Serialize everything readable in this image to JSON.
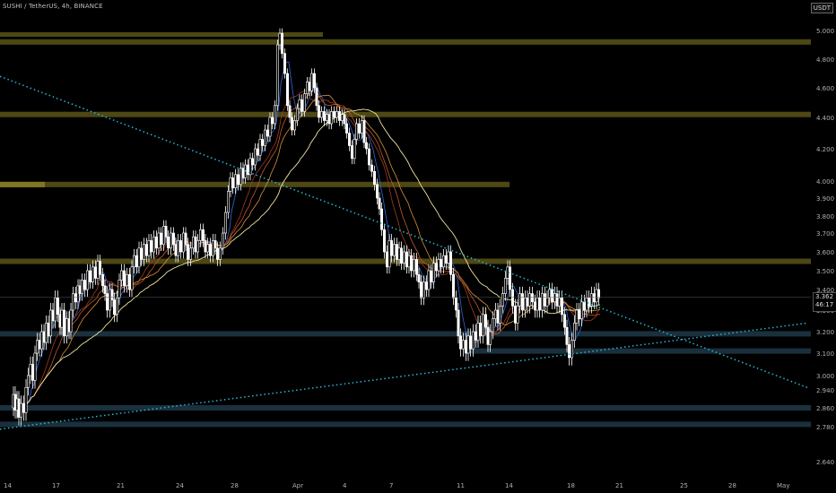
{
  "header": {
    "symbol_title": "SUSHI / TetherUS, 4h, BINANCE",
    "currency_badge": "USDT"
  },
  "price_tag": {
    "price": "3.362",
    "countdown": "46:17"
  },
  "colors": {
    "background": "#000000",
    "candle_up": "#ffffff",
    "candle_down": "#ffffff",
    "trendline": "#29b6d6",
    "resistance_zone": "#5a5518",
    "support_zone": "#1f3848",
    "ma_fast": "#2b5fc9",
    "ma_slow": "#f0e3a0"
  },
  "chart_data": {
    "type": "candlestick",
    "title": "SUSHI / TetherUS, 4h, BINANCE",
    "xlabel": "",
    "ylabel": "",
    "ylim": [
      2.58,
      5.12
    ],
    "y_ticks": [
      "5.000",
      "4.800",
      "4.600",
      "4.400",
      "4.200",
      "4.000",
      "3.900",
      "3.800",
      "3.700",
      "3.600",
      "3.500",
      "3.400",
      "3.300",
      "3.200",
      "3.100",
      "3.000",
      "2.940",
      "2.860",
      "2.780",
      "2.640"
    ],
    "x_ticks": [
      "14",
      "17",
      "21",
      "24",
      "28",
      "Apr",
      "4",
      "7",
      "11",
      "14",
      "18",
      "21",
      "25",
      "28",
      "May"
    ],
    "last_price": 3.362,
    "horizontal_zones": [
      {
        "kind": "resistance",
        "price": 4.92
      },
      {
        "kind": "resistance",
        "price": 4.42
      },
      {
        "kind": "resistance",
        "price": 3.98
      },
      {
        "kind": "resistance",
        "price": 3.55
      },
      {
        "kind": "support",
        "price": 3.19
      },
      {
        "kind": "support",
        "price": 3.11
      },
      {
        "kind": "support",
        "price": 2.86
      },
      {
        "kind": "support",
        "price": 2.79
      }
    ],
    "trendlines": [
      {
        "name": "descending",
        "from": [
          0,
          4.68
        ],
        "to": [
          900,
          2.95
        ]
      },
      {
        "name": "ascending",
        "from": [
          0,
          2.77
        ],
        "to": [
          900,
          3.24
        ]
      }
    ],
    "price_path": [
      [
        14,
        2.86
      ],
      [
        16,
        2.92
      ],
      [
        18,
        2.85
      ],
      [
        20,
        2.9
      ],
      [
        22,
        2.82
      ],
      [
        25,
        2.88
      ],
      [
        28,
        2.84
      ],
      [
        30,
        2.95
      ],
      [
        33,
        3.0
      ],
      [
        35,
        3.05
      ],
      [
        38,
        2.98
      ],
      [
        40,
        3.1
      ],
      [
        43,
        3.16
      ],
      [
        45,
        3.12
      ],
      [
        48,
        3.2
      ],
      [
        50,
        3.15
      ],
      [
        53,
        3.24
      ],
      [
        55,
        3.18
      ],
      [
        58,
        3.3
      ],
      [
        60,
        3.25
      ],
      [
        63,
        3.36
      ],
      [
        66,
        3.28
      ],
      [
        68,
        3.22
      ],
      [
        70,
        3.3
      ],
      [
        73,
        3.18
      ],
      [
        76,
        3.26
      ],
      [
        78,
        3.2
      ],
      [
        80,
        3.3
      ],
      [
        83,
        3.38
      ],
      [
        86,
        3.34
      ],
      [
        88,
        3.42
      ],
      [
        90,
        3.38
      ],
      [
        93,
        3.45
      ],
      [
        96,
        3.4
      ],
      [
        99,
        3.5
      ],
      [
        102,
        3.44
      ],
      [
        105,
        3.52
      ],
      [
        108,
        3.46
      ],
      [
        110,
        3.55
      ],
      [
        113,
        3.48
      ],
      [
        116,
        3.42
      ],
      [
        118,
        3.38
      ],
      [
        121,
        3.3
      ],
      [
        124,
        3.4
      ],
      [
        126,
        3.35
      ],
      [
        129,
        3.28
      ],
      [
        132,
        3.36
      ],
      [
        134,
        3.45
      ],
      [
        137,
        3.5
      ],
      [
        140,
        3.42
      ],
      [
        143,
        3.48
      ],
      [
        146,
        3.4
      ],
      [
        148,
        3.52
      ],
      [
        151,
        3.58
      ],
      [
        154,
        3.52
      ],
      [
        156,
        3.62
      ],
      [
        159,
        3.56
      ],
      [
        162,
        3.64
      ],
      [
        165,
        3.58
      ],
      [
        167,
        3.66
      ],
      [
        170,
        3.6
      ],
      [
        173,
        3.68
      ],
      [
        176,
        3.62
      ],
      [
        178,
        3.7
      ],
      [
        181,
        3.64
      ],
      [
        184,
        3.74
      ],
      [
        186,
        3.68
      ],
      [
        189,
        3.62
      ],
      [
        192,
        3.7
      ],
      [
        195,
        3.64
      ],
      [
        197,
        3.58
      ],
      [
        200,
        3.66
      ],
      [
        203,
        3.6
      ],
      [
        206,
        3.7
      ],
      [
        208,
        3.64
      ],
      [
        211,
        3.56
      ],
      [
        214,
        3.62
      ],
      [
        217,
        3.68
      ],
      [
        219,
        3.6
      ],
      [
        222,
        3.66
      ],
      [
        225,
        3.72
      ],
      [
        228,
        3.66
      ],
      [
        230,
        3.6
      ],
      [
        233,
        3.64
      ],
      [
        236,
        3.58
      ],
      [
        239,
        3.66
      ],
      [
        241,
        3.62
      ],
      [
        244,
        3.56
      ],
      [
        247,
        3.62
      ],
      [
        250,
        3.7
      ],
      [
        253,
        3.82
      ],
      [
        256,
        3.94
      ],
      [
        258,
        4.02
      ],
      [
        261,
        3.96
      ],
      [
        264,
        4.04
      ],
      [
        267,
        3.98
      ],
      [
        270,
        4.08
      ],
      [
        272,
        4.02
      ],
      [
        275,
        4.1
      ],
      [
        278,
        4.04
      ],
      [
        280,
        4.14
      ],
      [
        283,
        4.1
      ],
      [
        286,
        4.2
      ],
      [
        289,
        4.16
      ],
      [
        291,
        4.26
      ],
      [
        294,
        4.22
      ],
      [
        297,
        4.32
      ],
      [
        300,
        4.28
      ],
      [
        302,
        4.4
      ],
      [
        305,
        4.36
      ],
      [
        308,
        4.48
      ],
      [
        311,
        4.9
      ],
      [
        313,
        4.98
      ],
      [
        316,
        4.84
      ],
      [
        319,
        4.7
      ],
      [
        322,
        4.48
      ],
      [
        324,
        4.4
      ],
      [
        327,
        4.32
      ],
      [
        330,
        4.38
      ],
      [
        333,
        4.46
      ],
      [
        335,
        4.52
      ],
      [
        338,
        4.44
      ],
      [
        341,
        4.56
      ],
      [
        344,
        4.64
      ],
      [
        346,
        4.58
      ],
      [
        349,
        4.7
      ],
      [
        352,
        4.6
      ],
      [
        354,
        4.48
      ],
      [
        357,
        4.4
      ],
      [
        360,
        4.44
      ],
      [
        363,
        4.38
      ],
      [
        366,
        4.42
      ],
      [
        368,
        4.36
      ],
      [
        371,
        4.44
      ],
      [
        374,
        4.4
      ],
      [
        377,
        4.44
      ],
      [
        380,
        4.38
      ],
      [
        383,
        4.42
      ],
      [
        385,
        4.36
      ],
      [
        388,
        4.3
      ],
      [
        391,
        4.22
      ],
      [
        394,
        4.14
      ],
      [
        396,
        4.26
      ],
      [
        399,
        4.36
      ],
      [
        402,
        4.3
      ],
      [
        405,
        4.38
      ],
      [
        407,
        4.24
      ],
      [
        410,
        4.2
      ],
      [
        413,
        4.1
      ],
      [
        416,
        4.06
      ],
      [
        419,
        3.98
      ],
      [
        422,
        3.9
      ],
      [
        424,
        3.84
      ],
      [
        427,
        3.72
      ],
      [
        430,
        3.6
      ],
      [
        433,
        3.52
      ],
      [
        435,
        3.66
      ],
      [
        438,
        3.58
      ],
      [
        441,
        3.64
      ],
      [
        444,
        3.56
      ],
      [
        446,
        3.62
      ],
      [
        449,
        3.54
      ],
      [
        452,
        3.6
      ],
      [
        455,
        3.52
      ],
      [
        457,
        3.58
      ],
      [
        460,
        3.5
      ],
      [
        463,
        3.56
      ],
      [
        466,
        3.48
      ],
      [
        468,
        3.44
      ],
      [
        471,
        3.36
      ],
      [
        474,
        3.44
      ],
      [
        477,
        3.4
      ],
      [
        479,
        3.5
      ],
      [
        482,
        3.44
      ],
      [
        485,
        3.54
      ],
      [
        488,
        3.5
      ],
      [
        490,
        3.56
      ],
      [
        493,
        3.52
      ],
      [
        496,
        3.58
      ],
      [
        499,
        3.54
      ],
      [
        501,
        3.6
      ],
      [
        504,
        3.48
      ],
      [
        507,
        3.36
      ],
      [
        510,
        3.3
      ],
      [
        512,
        3.18
      ],
      [
        515,
        3.12
      ],
      [
        518,
        3.16
      ],
      [
        521,
        3.1
      ],
      [
        523,
        3.18
      ],
      [
        526,
        3.12
      ],
      [
        529,
        3.2
      ],
      [
        532,
        3.16
      ],
      [
        534,
        3.24
      ],
      [
        537,
        3.18
      ],
      [
        540,
        3.28
      ],
      [
        543,
        3.22
      ],
      [
        545,
        3.14
      ],
      [
        548,
        3.2
      ],
      [
        551,
        3.26
      ],
      [
        554,
        3.3
      ],
      [
        556,
        3.24
      ],
      [
        559,
        3.32
      ],
      [
        562,
        3.38
      ],
      [
        565,
        3.46
      ],
      [
        567,
        3.52
      ],
      [
        570,
        3.4
      ],
      [
        573,
        3.32
      ],
      [
        576,
        3.24
      ],
      [
        578,
        3.32
      ],
      [
        581,
        3.38
      ],
      [
        584,
        3.3
      ],
      [
        587,
        3.36
      ],
      [
        589,
        3.32
      ],
      [
        592,
        3.38
      ],
      [
        595,
        3.34
      ],
      [
        598,
        3.3
      ],
      [
        600,
        3.36
      ],
      [
        603,
        3.3
      ],
      [
        606,
        3.38
      ],
      [
        609,
        3.32
      ],
      [
        611,
        3.36
      ],
      [
        614,
        3.4
      ],
      [
        617,
        3.34
      ],
      [
        620,
        3.38
      ],
      [
        622,
        3.32
      ],
      [
        625,
        3.36
      ],
      [
        628,
        3.28
      ],
      [
        631,
        3.22
      ],
      [
        633,
        3.14
      ],
      [
        636,
        3.08
      ],
      [
        639,
        3.16
      ],
      [
        642,
        3.24
      ],
      [
        644,
        3.3
      ],
      [
        647,
        3.26
      ],
      [
        650,
        3.34
      ],
      [
        653,
        3.3
      ],
      [
        655,
        3.36
      ],
      [
        658,
        3.32
      ],
      [
        661,
        3.38
      ],
      [
        664,
        3.34
      ],
      [
        666,
        3.4
      ],
      [
        669,
        3.36
      ]
    ]
  }
}
